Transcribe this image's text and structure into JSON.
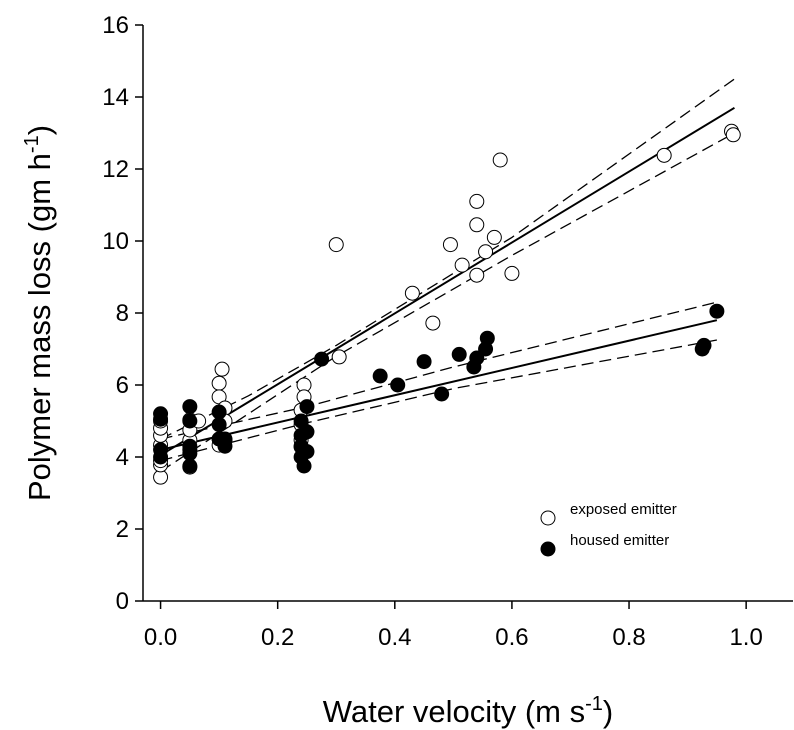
{
  "chart_data": {
    "type": "scatter",
    "xlabel": {
      "text": "Water velocity (m s",
      "sup": "-1",
      "end": ")"
    },
    "ylabel": {
      "text": "Polymer mass loss (gm h",
      "sup": "-1",
      "end": ")"
    },
    "xlim": [
      -0.03,
      1.08
    ],
    "ylim": [
      0,
      16
    ],
    "xticks": [
      {
        "value": 0,
        "label": "0.0"
      },
      {
        "value": 0.2,
        "label": "0.2"
      },
      {
        "value": 0.4,
        "label": "0.4"
      },
      {
        "value": 0.6,
        "label": "0.6"
      },
      {
        "value": 0.8,
        "label": "0.8"
      },
      {
        "value": 1,
        "label": "1.0"
      }
    ],
    "yticks": [
      0,
      2,
      4,
      6,
      8,
      10,
      12,
      14,
      16
    ],
    "legend": "lower right",
    "series": [
      {
        "name": "exposed emitter",
        "type": "scatter",
        "marker": "open",
        "x": [
          0,
          0,
          0,
          0,
          0,
          0,
          0,
          0.05,
          0.05,
          0.05,
          0.05,
          0.05,
          0.065,
          0.1,
          0.105,
          0.1,
          0.1,
          0.1,
          0.11,
          0.11,
          0.11,
          0.24,
          0.24,
          0.24,
          0.24,
          0.245,
          0.245,
          0.3,
          0.305,
          0.43,
          0.465,
          0.495,
          0.515,
          0.54,
          0.54,
          0.54,
          0.555,
          0.57,
          0.58,
          0.6,
          0.86,
          0.975,
          0.978
        ],
        "values": [
          3.44,
          3.78,
          3.9,
          4.33,
          4.6,
          4.8,
          5.0,
          3.72,
          4.2,
          4.47,
          4.75,
          5.03,
          5.0,
          6.05,
          6.44,
          5.67,
          4.33,
          4.5,
          5.36,
          4.47,
          5.0,
          5.3,
          4.9,
          4.47,
          4.28,
          6.0,
          5.67,
          9.9,
          6.78,
          8.55,
          7.72,
          9.9,
          9.33,
          11.1,
          10.45,
          9.05,
          9.7,
          10.1,
          12.25,
          9.1,
          12.38,
          13.05,
          12.95
        ]
      },
      {
        "name": "housed emitter",
        "type": "scatter",
        "marker": "filled",
        "x": [
          0,
          0,
          0,
          0,
          0.05,
          0.05,
          0.05,
          0.05,
          0.05,
          0.1,
          0.1,
          0.1,
          0.11,
          0.11,
          0.24,
          0.24,
          0.24,
          0.24,
          0.245,
          0.25,
          0.25,
          0.25,
          0.275,
          0.375,
          0.405,
          0.45,
          0.48,
          0.51,
          0.535,
          0.54,
          0.555,
          0.558,
          0.925,
          0.928,
          0.95
        ],
        "values": [
          5.2,
          5.05,
          4.2,
          4.0,
          5.4,
          5.0,
          4.3,
          4.1,
          3.75,
          5.25,
          4.9,
          4.5,
          4.3,
          4.5,
          5.0,
          4.6,
          4.3,
          4.0,
          3.75,
          5.4,
          4.7,
          4.15,
          6.72,
          6.25,
          6.0,
          6.65,
          5.75,
          6.85,
          6.5,
          6.75,
          7.0,
          7.3,
          7.0,
          7.1,
          8.05
        ]
      },
      {
        "type": "line",
        "dash": false,
        "x": [
          0,
          0.98
        ],
        "values": [
          4.05,
          13.7
        ]
      },
      {
        "type": "line",
        "dash": true,
        "x": [
          0,
          0.15,
          0.3,
          0.6,
          0.98
        ],
        "values": [
          4.5,
          5.7,
          7.1,
          10.1,
          14.5
        ]
      },
      {
        "type": "line",
        "dash": true,
        "x": [
          0,
          0.15,
          0.3,
          0.6,
          0.98
        ],
        "values": [
          3.6,
          5.2,
          6.8,
          9.6,
          13.0
        ]
      },
      {
        "type": "line",
        "dash": false,
        "x": [
          0,
          0.95
        ],
        "values": [
          4.2,
          7.8
        ]
      },
      {
        "type": "line",
        "dash": true,
        "x": [
          0,
          0.25,
          0.5,
          0.95
        ],
        "values": [
          4.5,
          5.4,
          6.5,
          8.3
        ]
      },
      {
        "type": "line",
        "dash": true,
        "x": [
          0,
          0.25,
          0.5,
          0.95
        ],
        "values": [
          3.9,
          4.95,
          5.9,
          7.25
        ]
      }
    ]
  }
}
